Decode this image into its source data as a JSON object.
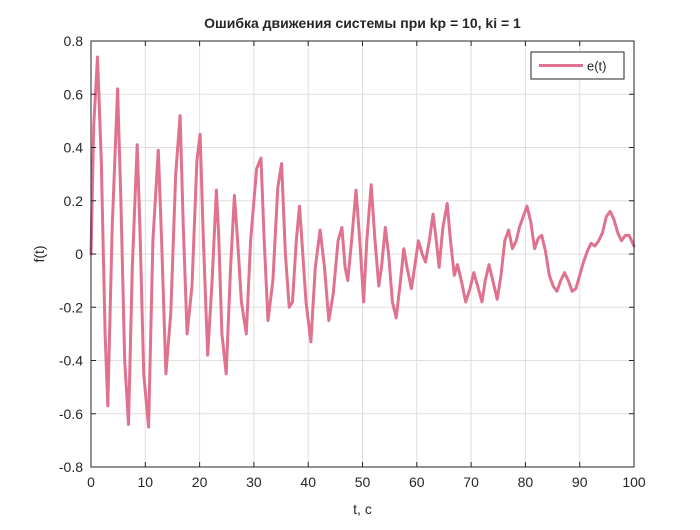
{
  "chart_data": {
    "type": "line",
    "title": "Ошибка движения системы при kp = 10, ki = 1",
    "xlabel": "t, c",
    "ylabel": "f(t)",
    "xlim": [
      0,
      100
    ],
    "ylim": [
      -0.8,
      0.8
    ],
    "xticks": [
      0,
      10,
      20,
      30,
      40,
      50,
      60,
      70,
      80,
      90,
      100
    ],
    "xtick_labels": [
      "0",
      "10",
      "20",
      "30",
      "40",
      "50",
      "60",
      "70",
      "80",
      "90",
      "100"
    ],
    "yticks": [
      -0.8,
      -0.6,
      -0.4,
      -0.2,
      0,
      0.2,
      0.4,
      0.6,
      0.8
    ],
    "ytick_labels": [
      "-0.8",
      "-0.6",
      "-0.4",
      "-0.2",
      "0",
      "0.2",
      "0.4",
      "0.6",
      "0.8"
    ],
    "grid": true,
    "legend_position": "top-right",
    "series": [
      {
        "name": "e(t)",
        "color": "#e0728f",
        "points": [
          [
            0,
            0
          ],
          [
            0.5,
            0.48
          ],
          [
            1.2,
            0.74
          ],
          [
            1.9,
            0.35
          ],
          [
            2.6,
            -0.3
          ],
          [
            3.1,
            -0.57
          ],
          [
            3.9,
            0.1
          ],
          [
            4.9,
            0.62
          ],
          [
            5.5,
            0.2
          ],
          [
            6.2,
            -0.4
          ],
          [
            6.9,
            -0.64
          ],
          [
            7.6,
            -0.05
          ],
          [
            8.5,
            0.41
          ],
          [
            9.0,
            0.1
          ],
          [
            9.7,
            -0.45
          ],
          [
            10.6,
            -0.65
          ],
          [
            11.4,
            0.05
          ],
          [
            12.4,
            0.39
          ],
          [
            13.0,
            0.05
          ],
          [
            13.8,
            -0.45
          ],
          [
            14.7,
            -0.22
          ],
          [
            15.6,
            0.3
          ],
          [
            16.4,
            0.52
          ],
          [
            17.0,
            0.1
          ],
          [
            17.7,
            -0.3
          ],
          [
            18.6,
            -0.12
          ],
          [
            19.5,
            0.35
          ],
          [
            20.1,
            0.45
          ],
          [
            20.7,
            0.05
          ],
          [
            21.5,
            -0.38
          ],
          [
            22.3,
            -0.1
          ],
          [
            23.1,
            0.24
          ],
          [
            23.5,
            0.08
          ],
          [
            24.1,
            -0.3
          ],
          [
            24.9,
            -0.45
          ],
          [
            25.7,
            -0.05
          ],
          [
            26.4,
            0.22
          ],
          [
            27.0,
            0.05
          ],
          [
            27.7,
            -0.18
          ],
          [
            28.6,
            -0.3
          ],
          [
            29.4,
            0.05
          ],
          [
            30.5,
            0.32
          ],
          [
            31.3,
            0.36
          ],
          [
            31.9,
            0.05
          ],
          [
            32.6,
            -0.25
          ],
          [
            33.5,
            -0.1
          ],
          [
            34.4,
            0.25
          ],
          [
            35.1,
            0.34
          ],
          [
            35.8,
            0.0
          ],
          [
            36.5,
            -0.2
          ],
          [
            37.1,
            -0.18
          ],
          [
            37.8,
            0.05
          ],
          [
            38.4,
            0.18
          ],
          [
            39.0,
            0.0
          ],
          [
            39.6,
            -0.18
          ],
          [
            40.5,
            -0.33
          ],
          [
            41.3,
            -0.05
          ],
          [
            42.2,
            0.09
          ],
          [
            43.0,
            -0.05
          ],
          [
            43.8,
            -0.25
          ],
          [
            44.6,
            -0.15
          ],
          [
            45.5,
            0.05
          ],
          [
            46.2,
            0.1
          ],
          [
            46.8,
            -0.05
          ],
          [
            47.3,
            -0.1
          ],
          [
            48.0,
            0.05
          ],
          [
            48.8,
            0.24
          ],
          [
            49.5,
            0.05
          ],
          [
            50.2,
            -0.18
          ],
          [
            50.8,
            0.05
          ],
          [
            51.6,
            0.26
          ],
          [
            52.3,
            0.05
          ],
          [
            53.0,
            -0.12
          ],
          [
            53.5,
            -0.05
          ],
          [
            54.2,
            0.1
          ],
          [
            54.8,
            0.0
          ],
          [
            55.5,
            -0.18
          ],
          [
            56.2,
            -0.24
          ],
          [
            57.0,
            -0.1
          ],
          [
            57.6,
            0.02
          ],
          [
            58.2,
            -0.05
          ],
          [
            59.0,
            -0.13
          ],
          [
            59.6,
            -0.05
          ],
          [
            60.3,
            0.05
          ],
          [
            61.0,
            0.0
          ],
          [
            61.6,
            -0.03
          ],
          [
            62.3,
            0.05
          ],
          [
            63.0,
            0.15
          ],
          [
            63.6,
            0.05
          ],
          [
            64.1,
            -0.05
          ],
          [
            64.8,
            0.1
          ],
          [
            65.6,
            0.19
          ],
          [
            66.2,
            0.05
          ],
          [
            66.9,
            -0.08
          ],
          [
            67.5,
            -0.04
          ],
          [
            68.2,
            -0.1
          ],
          [
            69.0,
            -0.18
          ],
          [
            69.8,
            -0.13
          ],
          [
            70.5,
            -0.07
          ],
          [
            71.2,
            -0.12
          ],
          [
            72.0,
            -0.18
          ],
          [
            72.6,
            -0.1
          ],
          [
            73.3,
            -0.04
          ],
          [
            74.0,
            -0.1
          ],
          [
            74.8,
            -0.17
          ],
          [
            75.5,
            -0.08
          ],
          [
            76.2,
            0.05
          ],
          [
            76.9,
            0.09
          ],
          [
            77.6,
            0.02
          ],
          [
            78.3,
            0.05
          ],
          [
            78.9,
            0.1
          ],
          [
            79.6,
            0.14
          ],
          [
            80.3,
            0.18
          ],
          [
            81.0,
            0.12
          ],
          [
            81.7,
            0.02
          ],
          [
            82.4,
            0.06
          ],
          [
            83.0,
            0.07
          ],
          [
            83.7,
            0.01
          ],
          [
            84.4,
            -0.08
          ],
          [
            85.1,
            -0.12
          ],
          [
            85.8,
            -0.14
          ],
          [
            86.5,
            -0.1
          ],
          [
            87.2,
            -0.07
          ],
          [
            87.9,
            -0.1
          ],
          [
            88.6,
            -0.14
          ],
          [
            89.3,
            -0.13
          ],
          [
            90.0,
            -0.08
          ],
          [
            90.7,
            -0.03
          ],
          [
            91.4,
            0.01
          ],
          [
            92.1,
            0.04
          ],
          [
            92.8,
            0.03
          ],
          [
            93.5,
            0.05
          ],
          [
            94.2,
            0.08
          ],
          [
            94.9,
            0.14
          ],
          [
            95.6,
            0.16
          ],
          [
            96.3,
            0.13
          ],
          [
            97.0,
            0.08
          ],
          [
            97.7,
            0.05
          ],
          [
            98.4,
            0.07
          ],
          [
            99.1,
            0.07
          ],
          [
            100.0,
            0.03
          ]
        ]
      }
    ]
  }
}
